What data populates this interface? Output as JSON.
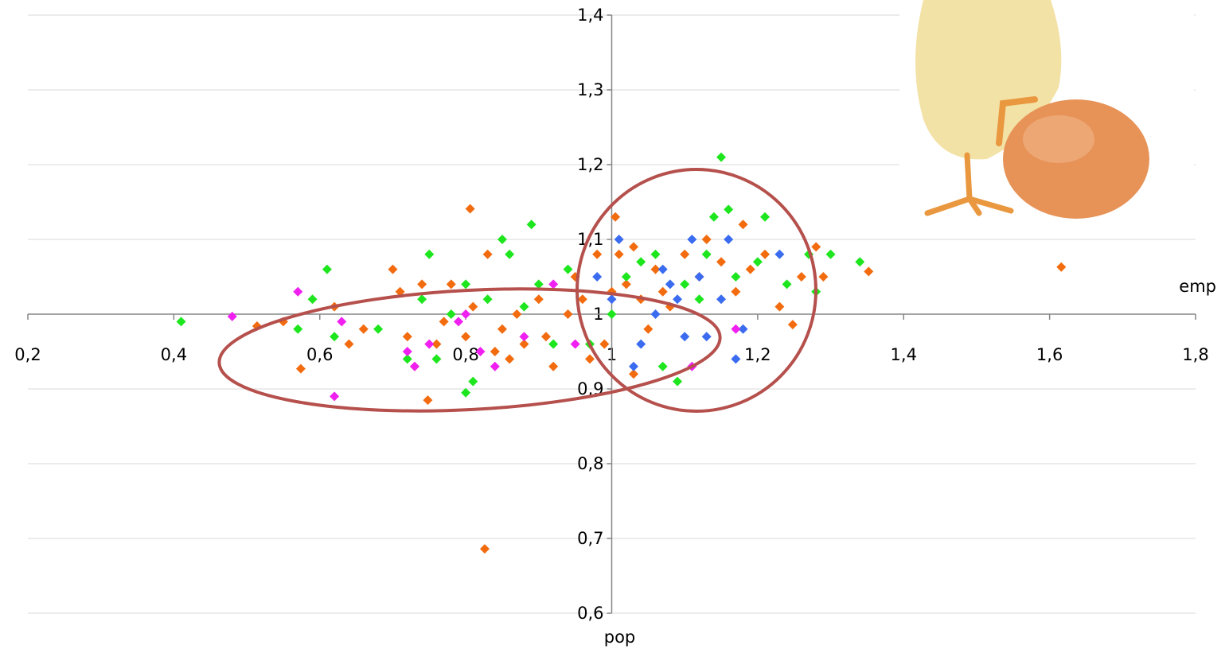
{
  "chart_data": {
    "type": "scatter",
    "x_label": "emp",
    "y_label": "pop",
    "xlim": [
      0.2,
      1.8
    ],
    "ylim": [
      0.6,
      1.4
    ],
    "xticks": [
      {
        "value": 0.2,
        "label": "0,2"
      },
      {
        "value": 0.4,
        "label": "0,4"
      },
      {
        "value": 0.6,
        "label": "0,6"
      },
      {
        "value": 0.8,
        "label": "0,8"
      },
      1,
      {
        "value": 1.2,
        "label": "1,2"
      },
      {
        "value": 1.4,
        "label": "1,4"
      },
      {
        "value": 1.6,
        "label": "1,6"
      },
      {
        "value": 1.8,
        "label": "1,8"
      }
    ],
    "yticks": [
      {
        "value": 0.6,
        "label": "0,6"
      },
      {
        "value": 0.7,
        "label": "0,7"
      },
      {
        "value": 0.8,
        "label": "0,8"
      },
      {
        "value": 0.9,
        "label": "0,9"
      },
      1,
      {
        "value": 1.1,
        "label": "1,1"
      },
      {
        "value": 1.2,
        "label": "1,2"
      },
      {
        "value": 1.3,
        "label": "1,3"
      },
      {
        "value": 1.4,
        "label": "1,4"
      }
    ],
    "grid": true,
    "series": [
      {
        "color": "#f26b0f",
        "x": [
          0.514,
          0.55,
          0.574,
          0.62,
          0.64,
          0.66,
          0.7,
          0.71,
          0.72,
          0.73,
          0.74,
          0.748,
          0.76,
          0.77,
          0.78,
          0.8,
          0.806,
          0.81,
          0.826,
          0.83,
          0.84,
          0.85,
          0.86,
          0.87,
          0.88,
          0.9,
          0.91,
          0.92,
          0.94,
          0.95,
          0.96,
          0.98,
          0.99,
          1.005,
          1.01,
          1.02,
          1.03,
          1.04,
          1.05,
          1.06,
          1.07,
          1.08,
          1.1,
          1.12,
          1.13,
          1.15,
          1.17,
          1.18,
          1.19,
          1.21,
          1.23,
          1.248,
          1.26,
          1.28,
          1.29,
          1.352,
          1.616,
          1.03,
          0.97,
          1.0
        ],
        "values": [
          0.984,
          0.99,
          0.927,
          1.01,
          0.96,
          0.98,
          1.06,
          1.03,
          0.97,
          0.93,
          1.04,
          0.885,
          0.96,
          0.99,
          1.04,
          0.97,
          1.141,
          1.01,
          0.686,
          1.08,
          0.95,
          0.98,
          0.94,
          1.0,
          0.96,
          1.02,
          0.97,
          0.93,
          1.0,
          1.05,
          1.02,
          1.08,
          0.96,
          1.13,
          1.08,
          1.04,
          1.09,
          1.02,
          0.98,
          1.06,
          1.03,
          1.01,
          1.08,
          1.05,
          1.1,
          1.07,
          1.03,
          1.12,
          1.06,
          1.08,
          1.01,
          0.986,
          1.05,
          1.09,
          1.05,
          1.057,
          1.063,
          0.92,
          0.94,
          1.03
        ]
      },
      {
        "color": "#1ee61e",
        "x": [
          0.41,
          0.57,
          0.59,
          0.61,
          0.62,
          0.68,
          0.72,
          0.74,
          0.75,
          0.76,
          0.78,
          0.8,
          0.8,
          0.81,
          0.83,
          0.85,
          0.86,
          0.88,
          0.89,
          0.9,
          0.92,
          0.94,
          0.97,
          1.0,
          1.02,
          1.04,
          1.06,
          1.07,
          1.09,
          1.1,
          1.12,
          1.13,
          1.14,
          1.15,
          1.16,
          1.17,
          1.2,
          1.21,
          1.24,
          1.27,
          1.3,
          1.34,
          1.28
        ],
        "values": [
          0.99,
          0.98,
          1.02,
          1.06,
          0.97,
          0.98,
          0.94,
          1.02,
          1.08,
          0.94,
          1.0,
          1.04,
          0.895,
          0.91,
          1.02,
          1.1,
          1.08,
          1.01,
          1.12,
          1.04,
          0.96,
          1.06,
          0.96,
          1.0,
          1.05,
          1.07,
          1.08,
          0.93,
          0.91,
          1.04,
          1.02,
          1.08,
          1.13,
          1.21,
          1.14,
          1.05,
          1.07,
          1.13,
          1.04,
          1.08,
          1.08,
          1.07,
          1.03
        ]
      },
      {
        "color": "#3b6cf0",
        "x": [
          0.98,
          1.0,
          1.03,
          1.04,
          1.06,
          1.07,
          1.09,
          1.1,
          1.11,
          1.12,
          1.13,
          1.15,
          1.16,
          1.17,
          1.18,
          1.23,
          1.01,
          1.08
        ],
        "values": [
          1.05,
          1.02,
          0.93,
          0.96,
          1.0,
          1.06,
          1.02,
          0.97,
          1.1,
          1.05,
          0.97,
          1.02,
          1.1,
          0.94,
          0.98,
          1.08,
          1.1,
          1.04
        ]
      },
      {
        "color": "#f020f0",
        "x": [
          0.48,
          0.57,
          0.62,
          0.63,
          0.72,
          0.73,
          0.75,
          0.79,
          0.8,
          0.82,
          0.84,
          0.88,
          0.92,
          0.95,
          1.11,
          1.17
        ],
        "values": [
          0.997,
          1.03,
          0.89,
          0.99,
          0.95,
          0.93,
          0.96,
          0.99,
          1.0,
          0.95,
          0.93,
          0.97,
          1.04,
          0.96,
          0.93,
          0.98
        ]
      }
    ]
  }
}
